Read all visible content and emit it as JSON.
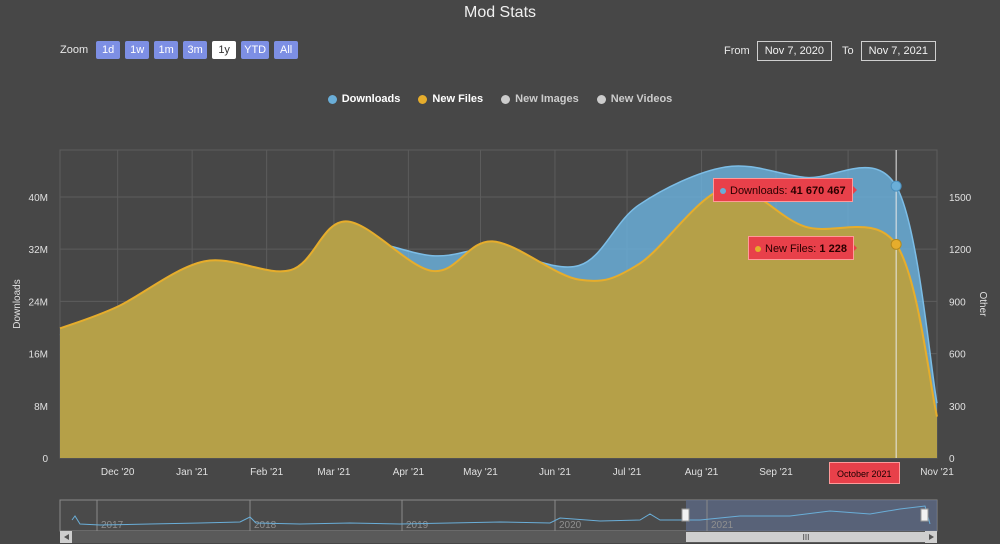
{
  "title": "Mod Stats",
  "zoom": {
    "label": "Zoom",
    "buttons": [
      "1d",
      "1w",
      "1m",
      "3m",
      "1y",
      "YTD",
      "All"
    ],
    "active": "1y"
  },
  "range": {
    "from_label": "From",
    "from_value": "Nov 7, 2020",
    "to_label": "To",
    "to_value": "Nov 7, 2021"
  },
  "legend": [
    {
      "name": "Downloads",
      "color": "#6aaed8",
      "enabled": true
    },
    {
      "name": "New Files",
      "color": "#e6ad2c",
      "enabled": true
    },
    {
      "name": "New Images",
      "color": "#cccccc",
      "enabled": false
    },
    {
      "name": "New Videos",
      "color": "#cccccc",
      "enabled": false
    }
  ],
  "tooltips": {
    "downloads_label": "Downloads:",
    "downloads_value": "41 670 467",
    "files_label": "New Files:",
    "files_value": "1 228",
    "x_label": "October 2021"
  },
  "navigator": {
    "years": [
      "2017",
      "2018",
      "2019",
      "2020",
      "2021"
    ],
    "scroll_label": "III"
  },
  "chart_data": {
    "type": "area",
    "xlabel": "",
    "ylabel_left": "Downloads",
    "ylabel_right": "Other",
    "x_ticks": [
      "Dec '20",
      "Jan '21",
      "Feb '21",
      "Mar '21",
      "Apr '21",
      "May '21",
      "Jun '21",
      "Jul '21",
      "Aug '21",
      "Sep '21",
      "Oct 2021",
      "Nov '21"
    ],
    "y_left_ticks": [
      "0",
      "8M",
      "16M",
      "24M",
      "32M",
      "40M"
    ],
    "y_left_range": [
      0,
      47200000
    ],
    "y_right_ticks": [
      "0",
      "300",
      "600",
      "900",
      "1200",
      "1500"
    ],
    "y_right_range": [
      0,
      1770
    ],
    "grid": true,
    "legend_position": "top-center",
    "x": [
      "Nov 7 2020",
      "Dec 1 2020",
      "Jan 1 2021",
      "Feb 1 2021",
      "Mar 1 2021",
      "Apr 1 2021",
      "May 1 2021",
      "Jun 1 2021",
      "Jul 1 2021",
      "Aug 1 2021",
      "Sep 1 2021",
      "Oct 1 2021",
      "Nov 7 2021"
    ],
    "series": [
      {
        "name": "Downloads",
        "axis": "left",
        "color": "#6aaed8",
        "values": [
          18800000,
          21500000,
          29300000,
          28600000,
          33600000,
          31000000,
          32000000,
          29500000,
          38800000,
          44600000,
          43000000,
          41670467,
          8400000
        ]
      },
      {
        "name": "New Files",
        "axis": "right",
        "color": "#e6ad2c",
        "values": [
          745,
          870,
          1130,
          1080,
          1360,
          1075,
          1245,
          1025,
          1115,
          1550,
          1330,
          1228,
          238
        ]
      }
    ]
  }
}
